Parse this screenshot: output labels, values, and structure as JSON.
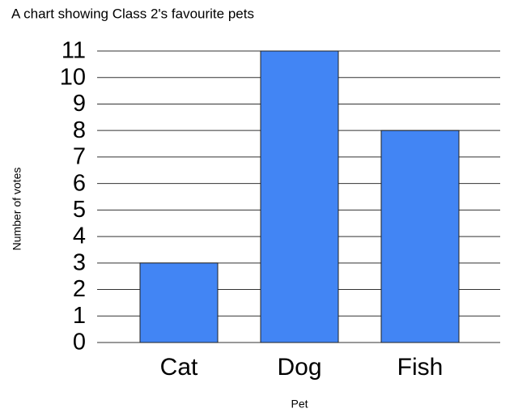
{
  "chart_data": {
    "type": "bar",
    "title": "A chart showing Class 2's favourite pets",
    "x_label": "Pet",
    "y_label": "Number of votes",
    "categories": [
      "Cat",
      "Dog",
      "Fish"
    ],
    "values": [
      3,
      11,
      8
    ],
    "color": "#4285f4",
    "ylim": [
      0,
      11
    ],
    "yticks": [
      0,
      1,
      2,
      3,
      4,
      5,
      6,
      7,
      8,
      9,
      10,
      11
    ],
    "grid": true
  }
}
